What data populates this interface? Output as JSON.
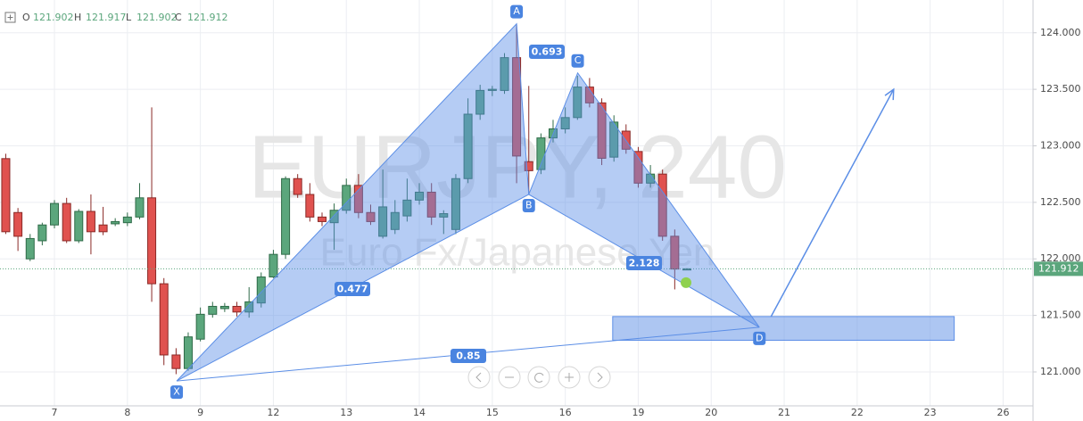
{
  "chart_data": {
    "type": "candlestick",
    "title": "EURJPY, 240",
    "subtitle": "Euro Fx/Japanese Yen",
    "ohlc_labels": [
      "O",
      "H",
      "L",
      "C"
    ],
    "x": [
      -0.667,
      -0.5,
      -0.333,
      -0.167,
      0,
      0.167,
      0.333,
      0.5,
      0.667,
      0.833,
      1,
      1.167,
      1.333,
      1.5,
      1.667,
      1.833,
      2,
      2.167,
      2.333,
      2.5,
      2.667,
      2.833,
      3,
      3.167,
      3.333,
      3.5,
      3.667,
      3.833,
      4,
      4.167,
      4.333,
      4.5,
      4.667,
      4.833,
      5,
      5.167,
      5.333,
      5.5,
      5.667,
      5.833,
      6,
      6.167,
      6.333,
      6.5,
      6.667,
      6.833,
      7,
      7.167,
      7.333,
      7.5,
      7.667,
      7.833,
      8,
      8.167,
      8.333,
      8.5,
      8.667
    ],
    "open": [
      122.887,
      122.41,
      122.0,
      122.16,
      122.3,
      122.49,
      122.16,
      122.42,
      122.3,
      122.31,
      122.32,
      122.37,
      122.54,
      121.78,
      121.15,
      121.03,
      121.29,
      121.51,
      121.56,
      121.58,
      121.53,
      121.61,
      121.84,
      122.04,
      122.71,
      122.57,
      122.37,
      122.32,
      122.43,
      122.65,
      122.41,
      122.2,
      122.26,
      122.38,
      122.52,
      122.59,
      122.37,
      122.26,
      122.71,
      123.28,
      123.49,
      123.49,
      123.78,
      122.86,
      122.79,
      123.07,
      123.15,
      123.25,
      123.52,
      123.38,
      122.9,
      123.13,
      122.95,
      122.67,
      122.75,
      122.2,
      121.902
    ],
    "high": [
      122.93,
      122.45,
      122.22,
      122.32,
      122.52,
      122.54,
      122.44,
      122.57,
      122.46,
      122.36,
      122.41,
      122.67,
      123.34,
      121.83,
      121.21,
      121.35,
      121.57,
      121.62,
      121.61,
      121.62,
      121.75,
      121.88,
      122.08,
      122.73,
      122.75,
      122.67,
      122.41,
      122.49,
      122.71,
      122.75,
      122.48,
      122.79,
      122.52,
      122.71,
      122.67,
      122.67,
      122.43,
      122.75,
      123.42,
      123.54,
      123.53,
      123.82,
      124.07,
      123.53,
      123.11,
      123.23,
      123.34,
      123.62,
      123.6,
      123.42,
      123.27,
      123.19,
      122.99,
      122.83,
      122.79,
      122.26,
      121.917
    ],
    "low": [
      122.22,
      122.07,
      121.98,
      122.12,
      122.27,
      122.14,
      122.14,
      122.04,
      122.21,
      122.29,
      122.29,
      122.35,
      121.62,
      121.06,
      120.98,
      121.01,
      121.27,
      121.48,
      121.53,
      121.49,
      121.48,
      121.57,
      121.83,
      122.0,
      122.54,
      122.33,
      122.29,
      122.08,
      122.4,
      122.36,
      122.3,
      122.18,
      122.22,
      122.33,
      122.48,
      122.3,
      122.22,
      122.22,
      122.67,
      123.23,
      123.44,
      123.46,
      122.67,
      122.57,
      122.75,
      123.03,
      123.11,
      123.23,
      123.34,
      122.83,
      122.86,
      122.93,
      122.63,
      122.63,
      122.16,
      121.73,
      121.902
    ],
    "close": [
      122.24,
      122.2,
      122.18,
      122.3,
      122.49,
      122.16,
      122.42,
      122.24,
      122.24,
      122.33,
      122.37,
      122.54,
      121.78,
      121.15,
      121.03,
      121.31,
      121.51,
      121.58,
      121.58,
      121.53,
      121.62,
      121.84,
      122.04,
      122.71,
      122.57,
      122.37,
      122.33,
      122.43,
      122.65,
      122.41,
      122.33,
      122.46,
      122.41,
      122.52,
      122.59,
      122.37,
      122.4,
      122.71,
      123.28,
      123.49,
      123.5,
      123.78,
      122.91,
      122.78,
      123.07,
      123.15,
      123.25,
      123.52,
      123.38,
      122.89,
      123.21,
      122.97,
      122.67,
      122.75,
      122.2,
      121.91,
      121.912
    ],
    "up_color": "#5ba67c",
    "down_color": "#e0524f",
    "xlim": [
      -0.746,
      13.41
    ],
    "xticks": [
      {
        "value": 0,
        "label": "7"
      },
      {
        "value": 1,
        "label": "8"
      },
      {
        "value": 2,
        "label": "9"
      },
      {
        "value": 3,
        "label": "12"
      },
      {
        "value": 4,
        "label": "13"
      },
      {
        "value": 5,
        "label": "14"
      },
      {
        "value": 6,
        "label": "15"
      },
      {
        "value": 7,
        "label": "16"
      },
      {
        "value": 8,
        "label": "19"
      },
      {
        "value": 9,
        "label": "20"
      },
      {
        "value": 10,
        "label": "21"
      },
      {
        "value": 11,
        "label": "22"
      },
      {
        "value": 12,
        "label": "23"
      },
      {
        "value": 13,
        "label": "26"
      }
    ],
    "ylim": [
      120.7,
      124.29
    ],
    "yticks": [
      {
        "value": 121,
        "label": "121.000"
      },
      {
        "value": 121.5,
        "label": "121.500"
      },
      {
        "value": 122,
        "label": "122.000"
      },
      {
        "value": 122.5,
        "label": "122.500"
      },
      {
        "value": 123,
        "label": "123.000"
      },
      {
        "value": 123.5,
        "label": "123.500"
      },
      {
        "value": 124,
        "label": "124.000"
      }
    ],
    "grid": true,
    "pattern": {
      "labels": [
        "X",
        "A",
        "B",
        "C",
        "D"
      ],
      "x": [
        1.675,
        6.333,
        6.5,
        7.17,
        9.66
      ],
      "y": [
        120.92,
        124.08,
        122.57,
        123.645,
        121.395
      ],
      "ratios": [
        0.693,
        0.477,
        2.128,
        0.85
      ],
      "color": "#5b8ee6"
    },
    "target_zone": {
      "x": [
        7.65,
        12.33
      ],
      "y": [
        121.28,
        121.49
      ]
    },
    "projection": {
      "x": [
        9.82,
        11.5
      ],
      "y": [
        121.49,
        123.5
      ]
    },
    "signal_point": {
      "x": 8.655,
      "y": 121.79,
      "color": "#8fd14f"
    }
  }
}
